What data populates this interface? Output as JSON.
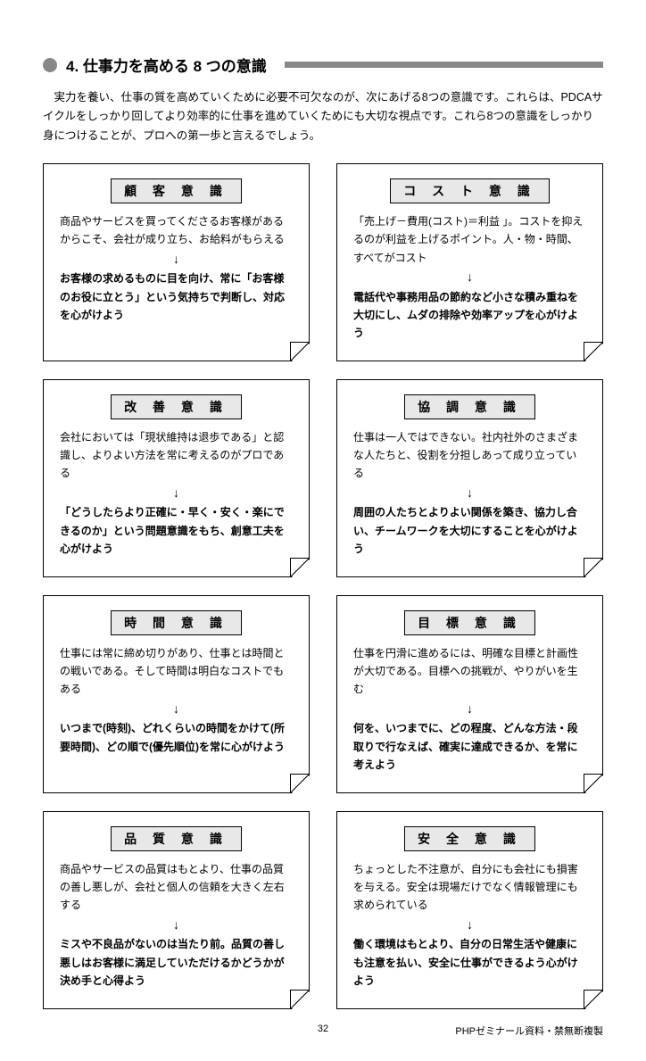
{
  "header": {
    "title": "4. 仕事力を高める 8 つの意識"
  },
  "intro": "実力を養い、仕事の質を高めていくために必要不可欠なのが、次にあげる8つの意識です。これらは、PDCAサイクルをしっかり回してより効率的に仕事を進めていくためにも大切な視点です。これら8つの意識をしっかり身につけることが、プロへの第一歩と言えるでしょう。",
  "cards": [
    {
      "title": "顧 客 意 識",
      "desc": "商品やサービスを買ってくださるお客様があるからこそ、会社が成り立ち、お給料がもらえる",
      "emph": "お客様の求めるものに目を向け、常に「お客様のお役に立とう」という気持ちで判断し、対応を心がけよう"
    },
    {
      "title": "コ ス ト 意 識",
      "desc": "「売上げ－費用(コスト)＝利益 」。コストを抑えるのが利益を上げるポイント。人・物・時間、すべてがコスト",
      "emph": "電話代や事務用品の節約など小さな積み重ねを大切にし、ムダの排除や効率アップを心がけよう"
    },
    {
      "title": "改 善 意 識",
      "desc": "会社においては「現状維持は退歩である」と認識し、よりよい方法を常に考えるのがプロである",
      "emph": "「どうしたらより正確に・早く・安く・楽にできるのか」という問題意識をもち、創意工夫を心がけよう"
    },
    {
      "title": "協 調 意 識",
      "desc": "仕事は一人ではできない。社内社外のさまざまな人たちと、役割を分担しあって成り立っている",
      "emph": "周囲の人たちとよりよい関係を築き、協力し合い、チームワークを大切にすることを心がけよう"
    },
    {
      "title": "時 間 意 識",
      "desc": "仕事には常に締め切りがあり、仕事とは時間との戦いである。そして時間は明白なコストでもある",
      "emph": "いつまで(時刻)、どれくらいの時間をかけて(所要時間)、どの順で(優先順位)を常に心がけよう"
    },
    {
      "title": "目 標 意 識",
      "desc": "仕事を円滑に進めるには、明確な目標と計画性が大切である。目標への挑戦が、やりがいを生む",
      "emph": "何を、いつまでに、どの程度、どんな方法・段取りで行なえば、確実に達成できるか、を常に考えよう"
    },
    {
      "title": "品 質 意 識",
      "desc": "商品やサービスの品質はもとより、仕事の品質の善し悪しが、会社と個人の信頼を大きく左右する",
      "emph": "ミスや不良品がないのは当たり前。品質の善し悪しはお客様に満足していただけるかどうかが決め手と心得よう"
    },
    {
      "title": "安 全 意 識",
      "desc": "ちょっとした不注意が、自分にも会社にも損害を与える。安全は現場だけでなく情報管理にも求められている",
      "emph": "働く環境はもとより、自分の日常生活や健康にも注意を払い、安全に仕事ができるよう心がけよう"
    }
  ],
  "arrow": "↓",
  "footer": {
    "page": "32",
    "copyright": "PHPゼミナール資料・禁無断複製"
  }
}
